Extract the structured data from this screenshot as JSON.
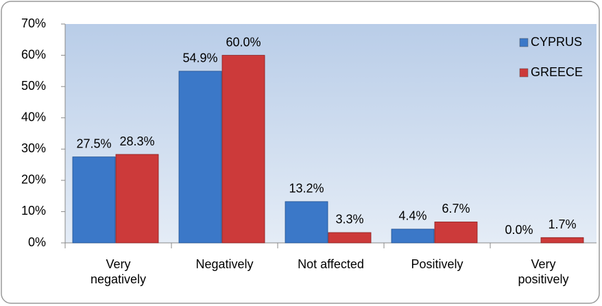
{
  "chart_data": {
    "type": "bar",
    "categories": [
      "Very\nnegatively",
      "Negatively",
      "Not affected",
      "Positively",
      "Very\npositively"
    ],
    "series": [
      {
        "name": "CYPRUS",
        "color": "#3b78c8",
        "values": [
          27.5,
          54.9,
          13.2,
          4.4,
          0.0
        ],
        "value_labels": [
          "27.5%",
          "54.9%",
          "13.2%",
          "4.4%",
          "0.0%"
        ]
      },
      {
        "name": "GREECE",
        "color": "#cc3a3a",
        "values": [
          28.3,
          60.0,
          3.3,
          6.7,
          1.7
        ],
        "value_labels": [
          "28.3%",
          "60.0%",
          "3.3%",
          "6.7%",
          "1.7%"
        ]
      }
    ],
    "ylim": [
      0,
      70
    ],
    "yticks": [
      {
        "value": 0,
        "label": "0%"
      },
      {
        "value": 10,
        "label": "10%"
      },
      {
        "value": 20,
        "label": "20%"
      },
      {
        "value": 30,
        "label": "30%"
      },
      {
        "value": 40,
        "label": "40%"
      },
      {
        "value": 50,
        "label": "50%"
      },
      {
        "value": 60,
        "label": "60%"
      },
      {
        "value": 70,
        "label": "70%"
      }
    ],
    "legend": "top-right"
  }
}
